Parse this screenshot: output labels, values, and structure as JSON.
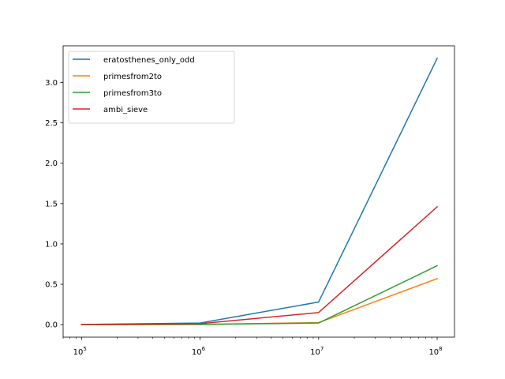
{
  "chart_data": {
    "type": "line",
    "title": "",
    "xlabel": "",
    "ylabel": "",
    "xscale": "log",
    "x": [
      100000,
      1000000,
      10000000,
      100000000
    ],
    "x_ticks": [
      {
        "base": "10",
        "exp": "5"
      },
      {
        "base": "10",
        "exp": "6"
      },
      {
        "base": "10",
        "exp": "7"
      },
      {
        "base": "10",
        "exp": "8"
      }
    ],
    "y_ticks": [
      "0.0",
      "0.5",
      "1.0",
      "1.5",
      "2.0",
      "2.5",
      "3.0"
    ],
    "xlim": [
      70000,
      140000000
    ],
    "ylim": [
      -0.155,
      3.455
    ],
    "grid": false,
    "legend_position": "upper-left",
    "series": [
      {
        "name": "eratosthenes_only_odd",
        "color": "#1f77b4",
        "values": [
          0.002,
          0.02,
          0.28,
          3.3
        ]
      },
      {
        "name": "primesfrom2to",
        "color": "#ff7f0e",
        "values": [
          0.0,
          0.003,
          0.025,
          0.57
        ]
      },
      {
        "name": "primesfrom3to",
        "color": "#2ca02c",
        "values": [
          0.0,
          0.003,
          0.02,
          0.73
        ]
      },
      {
        "name": "ambi_sieve",
        "color": "#d62728",
        "values": [
          0.001,
          0.012,
          0.15,
          1.46
        ]
      }
    ]
  }
}
